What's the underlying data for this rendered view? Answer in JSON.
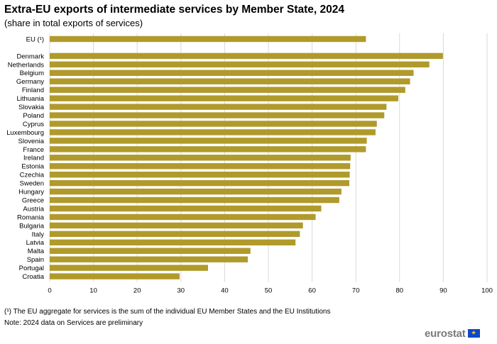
{
  "header": {
    "title": "Extra-EU exports of intermediate services by Member State, 2024",
    "subtitle": "(share in total exports of services)"
  },
  "chart_data": {
    "type": "bar",
    "orientation": "horizontal",
    "title": "Extra-EU exports of intermediate services by Member State, 2024",
    "subtitle": "(share in total exports of services)",
    "xlabel": "",
    "ylabel": "",
    "xlim": [
      0,
      100
    ],
    "xticks": [
      0,
      10,
      20,
      30,
      40,
      50,
      60,
      70,
      80,
      90,
      100
    ],
    "grid": true,
    "bar_color": "#b09a2b",
    "categories": [
      "EU (¹)",
      "Denmark",
      "Netherlands",
      "Belgium",
      "Germany",
      "Finland",
      "Lithuania",
      "Slovakia",
      "Poland",
      "Cyprus",
      "Luxembourg",
      "Slovenia",
      "France",
      "Ireland",
      "Estonia",
      "Czechia",
      "Sweden",
      "Hungary",
      "Greece",
      "Austria",
      "Romania",
      "Bulgaria",
      "Italy",
      "Latvia",
      "Malta",
      "Spain",
      "Portugal",
      "Croatia"
    ],
    "values": [
      72.3,
      89.9,
      86.8,
      83.2,
      82.4,
      81.3,
      79.7,
      77.0,
      76.5,
      74.8,
      74.5,
      72.5,
      72.3,
      68.8,
      68.7,
      68.6,
      68.5,
      66.7,
      66.2,
      62.1,
      60.8,
      57.9,
      57.2,
      56.2,
      45.9,
      45.3,
      36.2,
      29.7
    ]
  },
  "footer": {
    "note1": "(¹) The EU aggregate for services is the sum of the individual EU Member States and the EU Institutions",
    "note2": "Note: 2024 data on Services are preliminary",
    "logo_text": "eurostat",
    "flag_icon": "eu-flag-icon"
  },
  "colors": {
    "bar": "#b09a2b",
    "grid": "#d9d9d9",
    "logo_text": "#7a7a7a",
    "flag": "#0e47cb"
  }
}
